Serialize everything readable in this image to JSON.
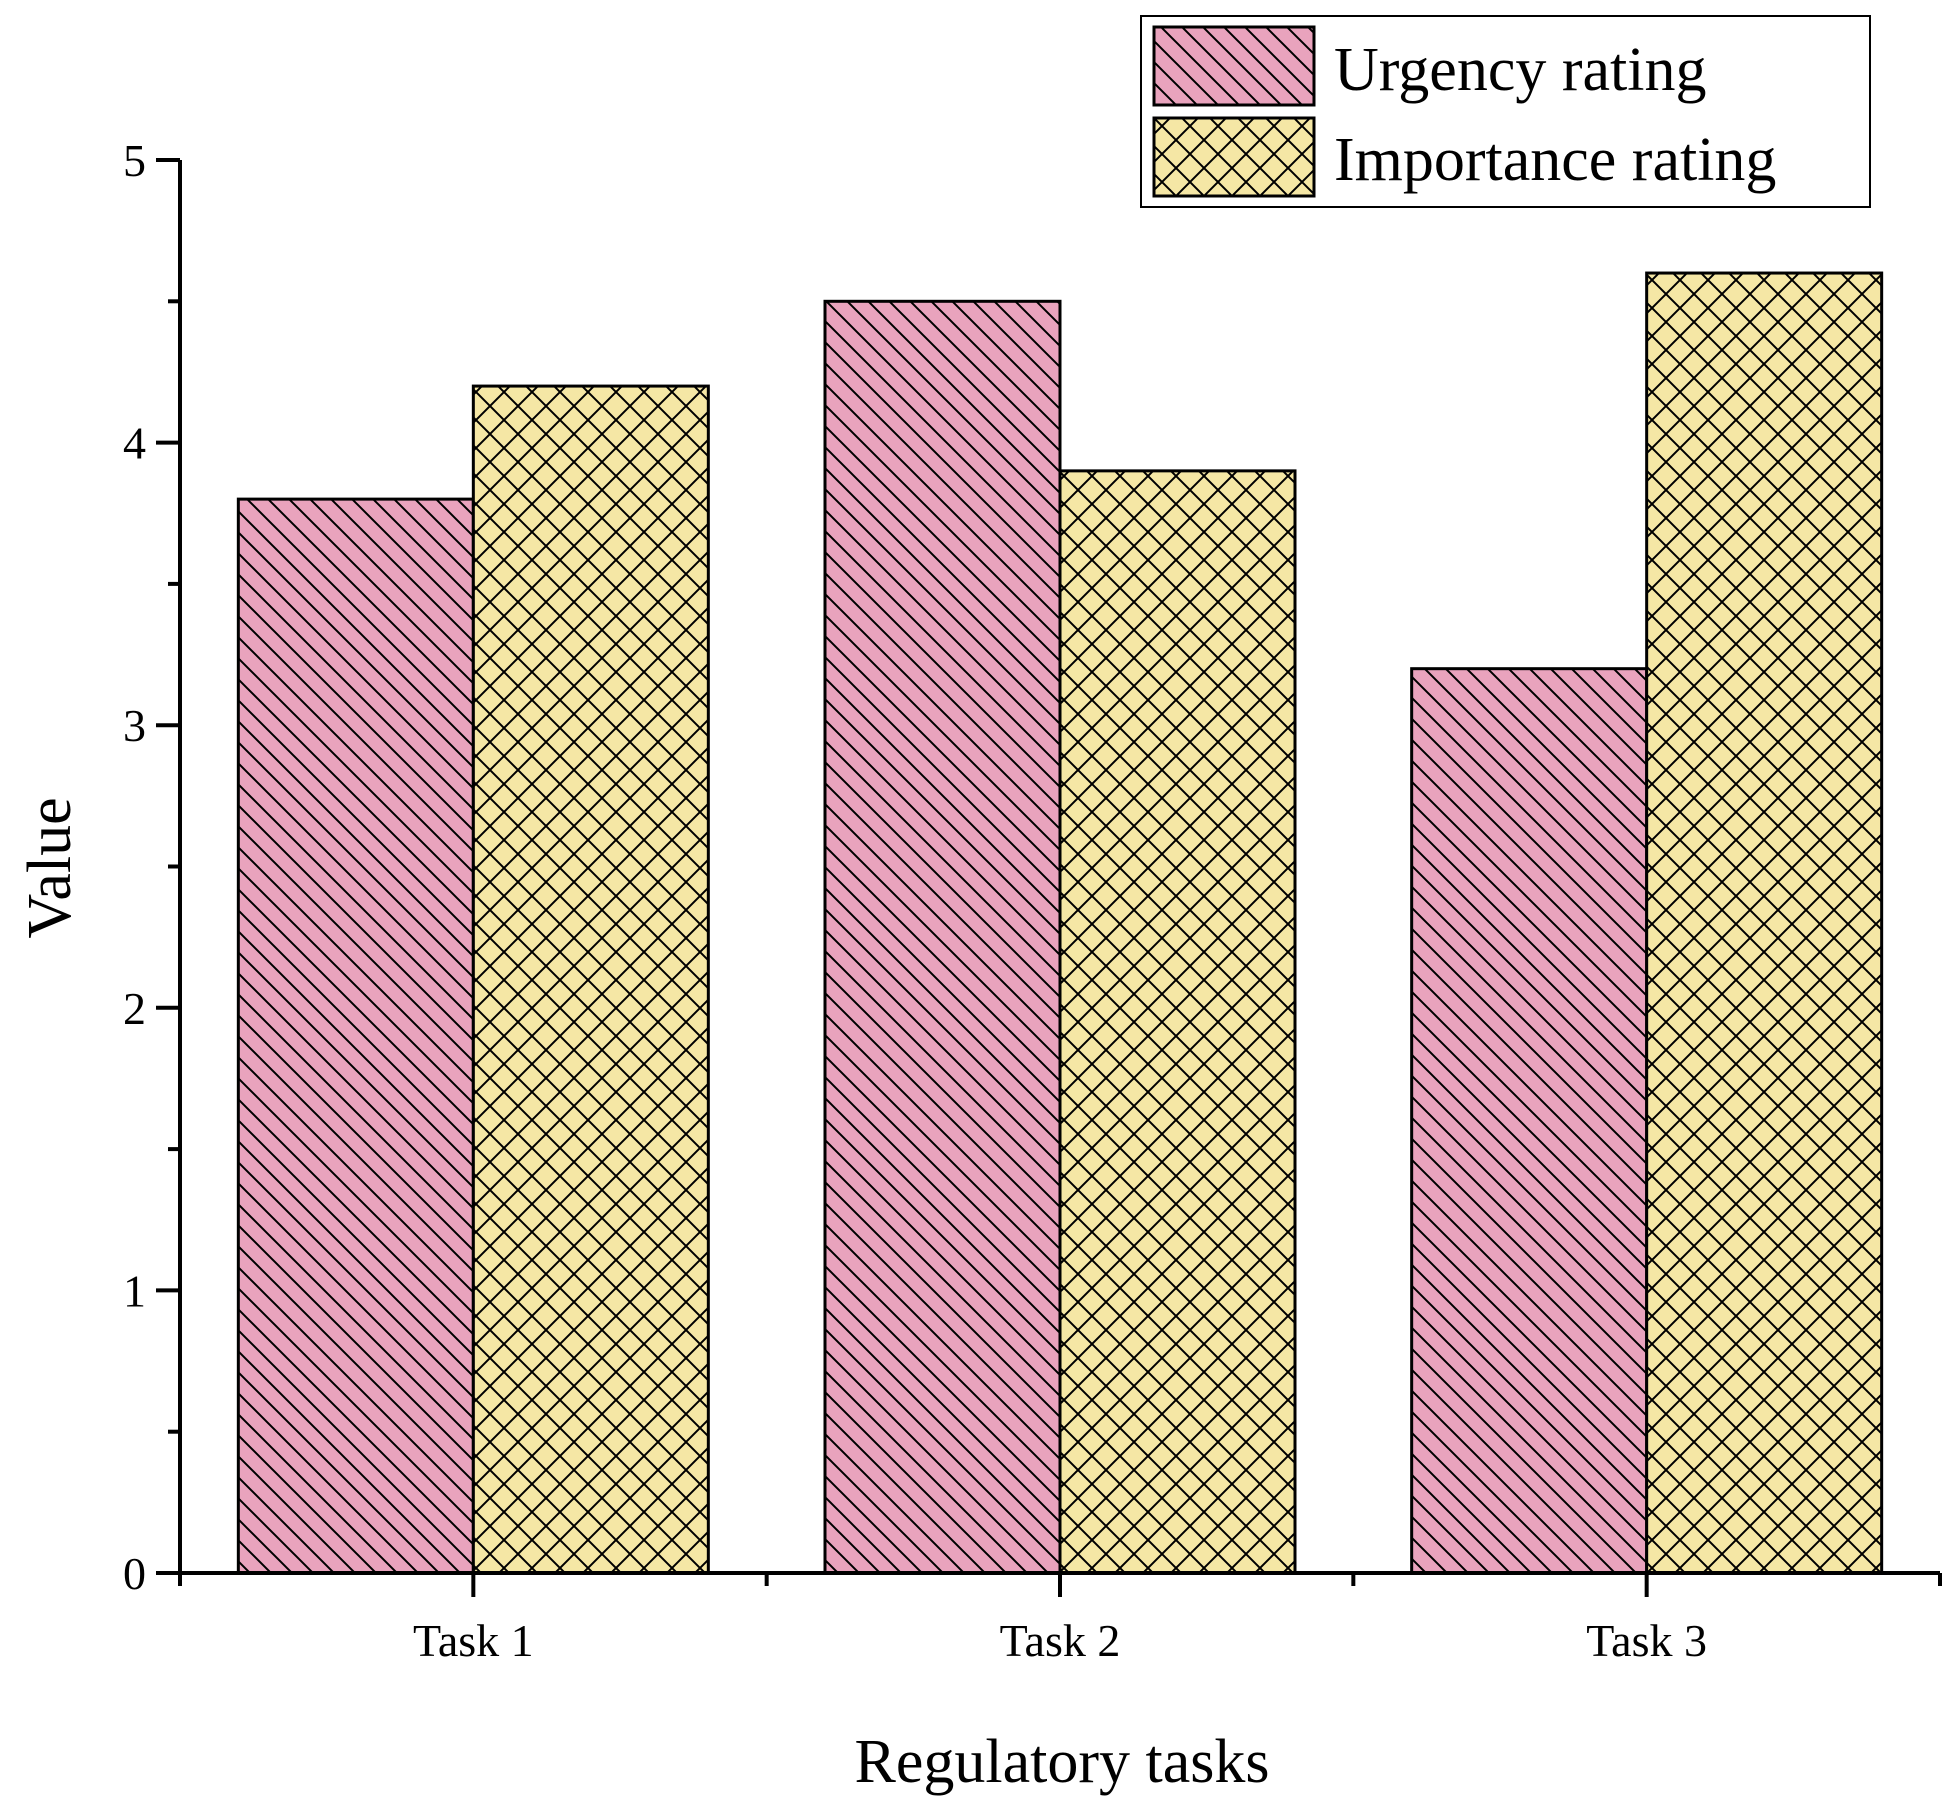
{
  "chart_data": {
    "type": "bar",
    "title": "",
    "xlabel": "Regulatory tasks",
    "ylabel": "Value",
    "categories": [
      "Task 1",
      "Task 2",
      "Task 3"
    ],
    "ylim": [
      0,
      5
    ],
    "yticks": [
      0,
      1,
      2,
      3,
      4,
      5
    ],
    "y_minor_step": 0.5,
    "legend_position": "top-right",
    "grid": false,
    "series": [
      {
        "name": "Urgency rating",
        "values": [
          3.8,
          4.5,
          3.2
        ],
        "color": "#e9a3bd",
        "hatch": "diagonal"
      },
      {
        "name": "Importance rating",
        "values": [
          4.2,
          3.9,
          4.6
        ],
        "color": "#f5e7a5",
        "hatch": "crosshatch"
      }
    ]
  }
}
